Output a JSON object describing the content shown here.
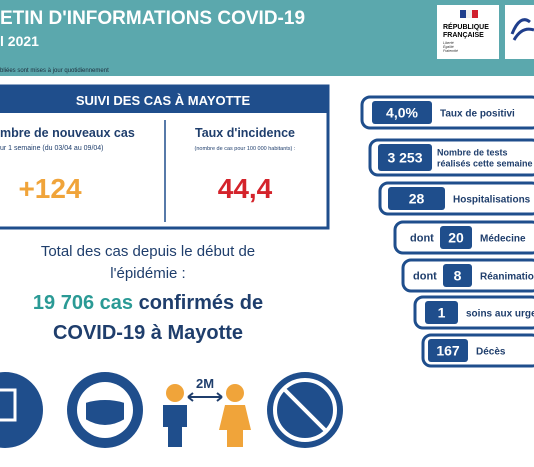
{
  "header": {
    "title": "ETIN D'INFORMATIONS COVID-19",
    "date": "l 2021",
    "note": "bliées sont mises à jour quotidiennement",
    "logo": {
      "line1": "RÉPUBLIQUE",
      "line2": "FRANÇAISE",
      "motto": [
        "Liberté",
        "Égalité",
        "Fraternité"
      ]
    }
  },
  "summary": {
    "title": "SUIVI DES CAS À MAYOTTE",
    "new_cases": {
      "label": "mbre de nouveaux cas",
      "sub": "ur 1 semaine (du 03/04 au 09/04)",
      "value": "+124"
    },
    "incidence": {
      "label": "Taux d'incidence",
      "sub": "(nombre de cas pour 100 000 habitants) :",
      "value": "44,4"
    }
  },
  "total": {
    "line1": "Total des cas depuis le début de",
    "line2": "l'épidémie :",
    "count": "19 706 cas",
    "suffix": "confirmés de",
    "line4": "COVID-19 à Mayotte"
  },
  "stats": [
    {
      "value": "4,0%",
      "label": "Taux de positivi"
    },
    {
      "value": "3 253",
      "label": "Nombre de tests",
      "label2": "réalisés cette semaine"
    },
    {
      "value": "28",
      "label": "Hospitalisations"
    },
    {
      "prefix": "dont",
      "value": "20",
      "label": "Médecine"
    },
    {
      "prefix": "dont",
      "value": "8",
      "label": "Réanimatio"
    },
    {
      "value": "1",
      "label": "soins aux urge"
    },
    {
      "value": "167",
      "label": "Décès"
    }
  ],
  "icons": {
    "distance": "2M"
  }
}
